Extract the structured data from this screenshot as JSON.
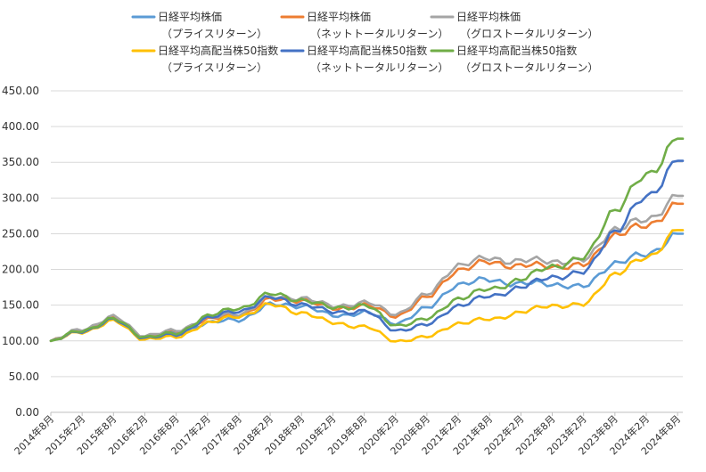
{
  "chart_data": {
    "type": "line",
    "title": "",
    "xlabel": "",
    "ylabel": "",
    "ylim": [
      0,
      450
    ],
    "yticks": [
      "0.00",
      "50.00",
      "100.00",
      "150.00",
      "200.00",
      "250.00",
      "300.00",
      "350.00",
      "400.00",
      "450.00"
    ],
    "ytick_values": [
      0,
      50,
      100,
      150,
      200,
      250,
      300,
      350,
      400,
      450
    ],
    "x_tick_labels": [
      "2014年8月",
      "2015年2月",
      "2015年8月",
      "2016年2月",
      "2016年8月",
      "2017年2月",
      "2017年8月",
      "2018年2月",
      "2018年8月",
      "2019年2月",
      "2019年8月",
      "2020年2月",
      "2020年8月",
      "2021年2月",
      "2021年8月",
      "2022年2月",
      "2022年8月",
      "2023年2月",
      "2023年8月",
      "2024年2月",
      "2024年8月"
    ],
    "x_month_index_of_ticks": [
      0,
      6,
      12,
      18,
      24,
      30,
      36,
      42,
      48,
      54,
      60,
      66,
      72,
      78,
      84,
      90,
      96,
      102,
      108,
      114,
      120
    ],
    "x_anchor_months": [
      0,
      6,
      12,
      18,
      24,
      30,
      36,
      42,
      48,
      54,
      60,
      66,
      72,
      78,
      84,
      90,
      96,
      102,
      108,
      114,
      120
    ],
    "series": [
      {
        "name": "日経平均株価",
        "subname": "（プライスリターン）",
        "color": "#5b9bd5",
        "values": [
          100,
          115,
          130,
          105,
          110,
          125,
          130,
          150,
          150,
          135,
          140,
          125,
          145,
          180,
          185,
          180,
          180,
          175,
          210,
          220,
          250
        ]
      },
      {
        "name": "日経平均株価",
        "subname": "（ネットトータルリターン）",
        "color": "#ed7d31",
        "values": [
          100,
          116,
          132,
          107,
          113,
          130,
          136,
          157,
          158,
          145,
          150,
          135,
          160,
          200,
          210,
          205,
          205,
          205,
          250,
          260,
          292
        ]
      },
      {
        "name": "日経平均株価",
        "subname": "（グロストータルリターン）",
        "color": "#a5a5a5",
        "values": [
          100,
          117,
          133,
          108,
          114,
          132,
          138,
          160,
          161,
          148,
          154,
          138,
          164,
          207,
          215,
          212,
          212,
          212,
          258,
          268,
          303
        ]
      },
      {
        "name": "日経平均高配当株50指数",
        "subname": "（プライスリターン）",
        "color": "#ffc000",
        "values": [
          100,
          113,
          127,
          103,
          105,
          125,
          135,
          150,
          140,
          125,
          120,
          100,
          105,
          125,
          130,
          140,
          150,
          150,
          195,
          215,
          255
        ]
      },
      {
        "name": "日経平均高配当株50指数",
        "subname": "（ネットトータルリターン）",
        "color": "#4472c4",
        "values": [
          100,
          114,
          129,
          105,
          108,
          132,
          142,
          160,
          152,
          140,
          142,
          115,
          122,
          150,
          162,
          175,
          190,
          195,
          255,
          300,
          352
        ]
      },
      {
        "name": "日経平均高配当株50指数",
        "subname": "（グロストータルリターン）",
        "color": "#70ad47",
        "values": [
          100,
          115,
          130,
          106,
          110,
          135,
          146,
          165,
          158,
          146,
          150,
          122,
          130,
          160,
          172,
          186,
          205,
          215,
          285,
          330,
          383
        ]
      }
    ]
  }
}
